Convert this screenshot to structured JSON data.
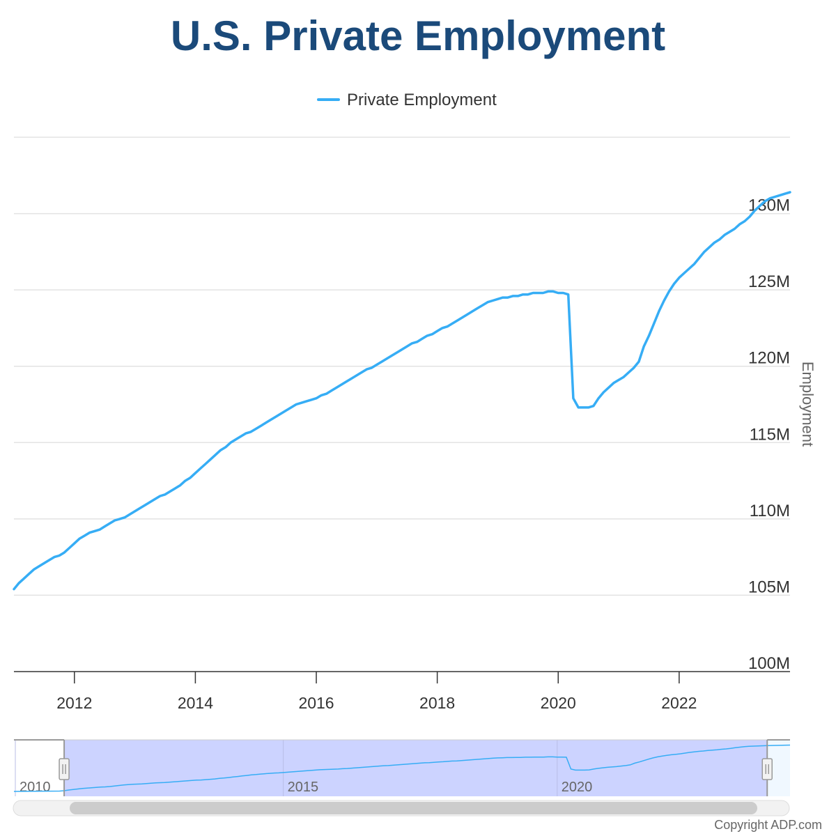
{
  "chart_data": {
    "type": "line",
    "title": "U.S. Private Employment",
    "ylabel": "Employment",
    "xlabel": "",
    "legend": {
      "entries": [
        "Private Employment"
      ],
      "placement": "top-center"
    },
    "grid": true,
    "ylim": [
      100000000,
      135000000
    ],
    "xlim": [
      "2011-01",
      "2023-11"
    ],
    "y_ticks": [
      "100M",
      "105M",
      "110M",
      "115M",
      "120M",
      "125M",
      "130M"
    ],
    "x_ticks": [
      "2012",
      "2014",
      "2016",
      "2018",
      "2020",
      "2022"
    ],
    "series": [
      {
        "name": "Private Employment",
        "color": "#36adf5",
        "x": [
          "2011-01",
          "2011-02",
          "2011-03",
          "2011-04",
          "2011-05",
          "2011-06",
          "2011-07",
          "2011-08",
          "2011-09",
          "2011-10",
          "2011-11",
          "2011-12",
          "2012-01",
          "2012-02",
          "2012-03",
          "2012-04",
          "2012-05",
          "2012-06",
          "2012-07",
          "2012-08",
          "2012-09",
          "2012-10",
          "2012-11",
          "2012-12",
          "2013-01",
          "2013-02",
          "2013-03",
          "2013-04",
          "2013-05",
          "2013-06",
          "2013-07",
          "2013-08",
          "2013-09",
          "2013-10",
          "2013-11",
          "2013-12",
          "2014-01",
          "2014-02",
          "2014-03",
          "2014-04",
          "2014-05",
          "2014-06",
          "2014-07",
          "2014-08",
          "2014-09",
          "2014-10",
          "2014-11",
          "2014-12",
          "2015-01",
          "2015-02",
          "2015-03",
          "2015-04",
          "2015-05",
          "2015-06",
          "2015-07",
          "2015-08",
          "2015-09",
          "2015-10",
          "2015-11",
          "2015-12",
          "2016-01",
          "2016-02",
          "2016-03",
          "2016-04",
          "2016-05",
          "2016-06",
          "2016-07",
          "2016-08",
          "2016-09",
          "2016-10",
          "2016-11",
          "2016-12",
          "2017-01",
          "2017-02",
          "2017-03",
          "2017-04",
          "2017-05",
          "2017-06",
          "2017-07",
          "2017-08",
          "2017-09",
          "2017-10",
          "2017-11",
          "2017-12",
          "2018-01",
          "2018-02",
          "2018-03",
          "2018-04",
          "2018-05",
          "2018-06",
          "2018-07",
          "2018-08",
          "2018-09",
          "2018-10",
          "2018-11",
          "2018-12",
          "2019-01",
          "2019-02",
          "2019-03",
          "2019-04",
          "2019-05",
          "2019-06",
          "2019-07",
          "2019-08",
          "2019-09",
          "2019-10",
          "2019-11",
          "2019-12",
          "2020-01",
          "2020-02",
          "2020-03",
          "2020-04",
          "2020-05",
          "2020-06",
          "2020-07",
          "2020-08",
          "2020-09",
          "2020-10",
          "2020-11",
          "2020-12",
          "2021-01",
          "2021-02",
          "2021-03",
          "2021-04",
          "2021-05",
          "2021-06",
          "2021-07",
          "2021-08",
          "2021-09",
          "2021-10",
          "2021-11",
          "2021-12",
          "2022-01",
          "2022-02",
          "2022-03",
          "2022-04",
          "2022-05",
          "2022-06",
          "2022-07",
          "2022-08",
          "2022-09",
          "2022-10",
          "2022-11",
          "2022-12",
          "2023-01",
          "2023-02",
          "2023-03",
          "2023-04",
          "2023-05",
          "2023-06",
          "2023-07",
          "2023-08",
          "2023-09",
          "2023-10",
          "2023-11"
        ],
        "values": [
          105.4,
          105.8,
          106.1,
          106.4,
          106.7,
          106.9,
          107.1,
          107.3,
          107.5,
          107.6,
          107.8,
          108.1,
          108.4,
          108.7,
          108.9,
          109.1,
          109.2,
          109.3,
          109.5,
          109.7,
          109.9,
          110.0,
          110.1,
          110.3,
          110.5,
          110.7,
          110.9,
          111.1,
          111.3,
          111.5,
          111.6,
          111.8,
          112.0,
          112.2,
          112.5,
          112.7,
          113.0,
          113.3,
          113.6,
          113.9,
          114.2,
          114.5,
          114.7,
          115.0,
          115.2,
          115.4,
          115.6,
          115.7,
          115.9,
          116.1,
          116.3,
          116.5,
          116.7,
          116.9,
          117.1,
          117.3,
          117.5,
          117.6,
          117.7,
          117.8,
          117.9,
          118.1,
          118.2,
          118.4,
          118.6,
          118.8,
          119.0,
          119.2,
          119.4,
          119.6,
          119.8,
          119.9,
          120.1,
          120.3,
          120.5,
          120.7,
          120.9,
          121.1,
          121.3,
          121.5,
          121.6,
          121.8,
          122.0,
          122.1,
          122.3,
          122.5,
          122.6,
          122.8,
          123.0,
          123.2,
          123.4,
          123.6,
          123.8,
          124.0,
          124.2,
          124.3,
          124.4,
          124.5,
          124.5,
          124.6,
          124.6,
          124.7,
          124.7,
          124.8,
          124.8,
          124.8,
          124.9,
          124.9,
          124.8,
          124.8,
          124.7,
          117.9,
          117.3,
          117.3,
          117.3,
          117.4,
          117.9,
          118.3,
          118.6,
          118.9,
          119.1,
          119.3,
          119.6,
          119.9,
          120.3,
          121.3,
          122.0,
          122.8,
          123.6,
          124.3,
          124.9,
          125.4,
          125.8,
          126.1,
          126.4,
          126.7,
          127.1,
          127.5,
          127.8,
          128.1,
          128.3,
          128.6,
          128.8,
          129.0,
          129.3,
          129.5,
          129.8,
          130.2,
          130.5,
          130.8,
          131.0,
          131.1,
          131.2,
          131.3,
          131.4
        ]
      }
    ]
  },
  "navigator": {
    "labels": [
      "2010",
      "2015",
      "2020"
    ],
    "selected_range": [
      "2011-01",
      "2023-11"
    ],
    "full_range": [
      "2010-02",
      "2024-04"
    ],
    "fill_color": "#ccd3ff"
  },
  "copyright": "Copyright ADP.com"
}
